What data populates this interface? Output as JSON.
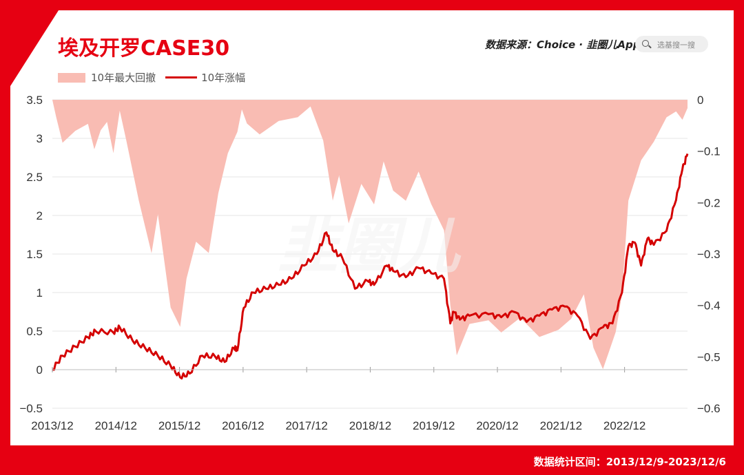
{
  "header": {
    "title": "埃及开罗CASE30",
    "source": "数据来源：Choice · 韭圈儿App",
    "search_placeholder": "选基搜一搜"
  },
  "footer": {
    "range": "数据统计区间：2013/12/9-2023/12/6"
  },
  "colors": {
    "brand_red": "#e60012",
    "line": "#d40000",
    "drawdown_fill": "#f9bcb3",
    "watermark": "#f4f4f4"
  },
  "chart_data": {
    "type": "line",
    "legend": [
      "10年最大回撤",
      "10年涨幅"
    ],
    "legend_position": "top-left",
    "grid": true,
    "x_ticks": [
      "2013/12",
      "2014/12",
      "2015/12",
      "2016/12",
      "2017/12",
      "2018/12",
      "2019/12",
      "2020/12",
      "2021/12",
      "2022/12"
    ],
    "y_left_ticks": [
      "3.5",
      "3",
      "2.5",
      "2",
      "1.5",
      "1",
      "0.5",
      "0",
      "−0.5"
    ],
    "y_right_ticks": [
      "0",
      "−0.1",
      "−0.2",
      "−0.3",
      "−0.4",
      "−0.5",
      "−0.6"
    ],
    "y_left_range": [
      -0.5,
      3.5
    ],
    "y_right_range": [
      -0.6,
      0
    ],
    "series": [
      {
        "name": "10年涨幅",
        "axis": "left",
        "x": [
          2013.94,
          2014.1,
          2014.3,
          2014.5,
          2014.62,
          2014.9,
          2015.0,
          2015.2,
          2015.4,
          2015.6,
          2015.8,
          2015.95,
          2016.1,
          2016.3,
          2016.5,
          2016.65,
          2016.8,
          2016.85,
          2016.95,
          2017.1,
          2017.3,
          2017.5,
          2017.7,
          2017.9,
          2018.1,
          2018.25,
          2018.35,
          2018.5,
          2018.7,
          2018.9,
          2019.0,
          2019.2,
          2019.3,
          2019.5,
          2019.7,
          2019.9,
          2020.1,
          2020.2,
          2020.25,
          2020.35,
          2020.5,
          2020.8,
          2021.0,
          2021.2,
          2021.4,
          2021.6,
          2021.8,
          2022.0,
          2022.2,
          2022.4,
          2022.6,
          2022.75,
          2022.9,
          2023.0,
          2023.1,
          2023.2,
          2023.3,
          2023.4,
          2023.6,
          2023.75,
          2023.85,
          2023.93
        ],
        "y": [
          0.0,
          0.18,
          0.3,
          0.42,
          0.5,
          0.48,
          0.55,
          0.38,
          0.28,
          0.18,
          0.05,
          -0.1,
          -0.05,
          0.18,
          0.17,
          0.1,
          0.28,
          0.25,
          0.8,
          1.0,
          1.05,
          1.1,
          1.18,
          1.35,
          1.5,
          1.78,
          1.55,
          1.45,
          1.05,
          1.15,
          1.1,
          1.35,
          1.28,
          1.2,
          1.32,
          1.25,
          1.18,
          0.6,
          0.75,
          0.65,
          0.7,
          0.72,
          0.68,
          0.75,
          0.62,
          0.7,
          0.78,
          0.82,
          0.7,
          0.4,
          0.55,
          0.6,
          1.0,
          1.6,
          1.65,
          1.35,
          1.7,
          1.62,
          1.8,
          2.2,
          2.6,
          2.8
        ]
      },
      {
        "name": "10年最大回撤",
        "axis": "right",
        "x": [
          2013.94,
          2014.0,
          2014.1,
          2014.3,
          2014.5,
          2014.6,
          2014.7,
          2014.8,
          2014.9,
          2015.0,
          2015.1,
          2015.3,
          2015.5,
          2015.6,
          2015.8,
          2015.95,
          2016.05,
          2016.2,
          2016.4,
          2016.55,
          2016.7,
          2016.85,
          2016.92,
          2017.0,
          2017.2,
          2017.5,
          2017.8,
          2018.0,
          2018.2,
          2018.35,
          2018.45,
          2018.6,
          2018.8,
          2019.0,
          2019.15,
          2019.3,
          2019.5,
          2019.7,
          2019.9,
          2020.1,
          2020.2,
          2020.3,
          2020.5,
          2020.8,
          2021.0,
          2021.3,
          2021.6,
          2021.9,
          2022.1,
          2022.3,
          2022.45,
          2022.6,
          2022.8,
          2022.9,
          2023.0,
          2023.2,
          2023.4,
          2023.6,
          2023.75,
          2023.85,
          2023.93
        ],
        "y": [
          0.0,
          -0.03,
          -0.08,
          -0.06,
          -0.05,
          -0.1,
          -0.06,
          -0.04,
          -0.1,
          -0.02,
          -0.08,
          -0.2,
          -0.3,
          -0.22,
          -0.4,
          -0.44,
          -0.35,
          -0.28,
          -0.3,
          -0.18,
          -0.1,
          -0.06,
          -0.02,
          -0.05,
          -0.07,
          -0.04,
          -0.03,
          -0.01,
          -0.08,
          -0.2,
          -0.15,
          -0.24,
          -0.16,
          -0.2,
          -0.12,
          -0.18,
          -0.2,
          -0.14,
          -0.2,
          -0.25,
          -0.4,
          -0.5,
          -0.44,
          -0.43,
          -0.45,
          -0.42,
          -0.46,
          -0.45,
          -0.43,
          -0.38,
          -0.48,
          -0.52,
          -0.45,
          -0.38,
          -0.2,
          -0.12,
          -0.08,
          -0.03,
          -0.02,
          -0.04,
          -0.02
        ]
      }
    ]
  }
}
